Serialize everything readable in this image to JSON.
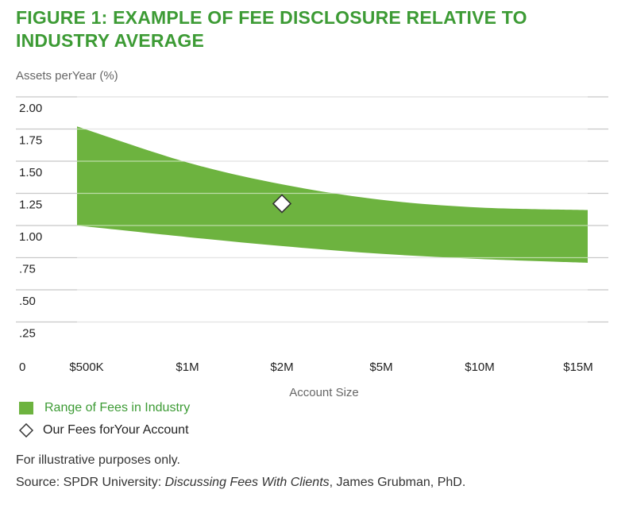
{
  "title": "FIGURE 1: EXAMPLE OF FEE DISCLOSURE RELATIVE TO INDUSTRY AVERAGE",
  "notes": {
    "line1": "For illustrative purposes only.",
    "source_prefix": "Source: SPDR University: ",
    "source_title": "Discussing  Fees With Clients",
    "source_suffix": ", James Grubman, PhD."
  },
  "chart_data": {
    "type": "area",
    "title": "FIGURE 1: EXAMPLE OF FEE DISCLOSURE RELATIVE TO INDUSTRY AVERAGE",
    "ylabel": "Assets perYear (%)",
    "xlabel": "Account Size",
    "categories": [
      "$500K",
      "$1M",
      "$2M",
      "$5M",
      "$10M",
      "$15M"
    ],
    "y_ticks": [
      {
        "value": 0,
        "label": "0"
      },
      {
        "value": 0.25,
        "label": ".25"
      },
      {
        "value": 0.5,
        "label": ".50"
      },
      {
        "value": 0.75,
        "label": ".75"
      },
      {
        "value": 1.0,
        "label": "1.00"
      },
      {
        "value": 1.25,
        "label": "1.25"
      },
      {
        "value": 1.5,
        "label": "1.50"
      },
      {
        "value": 1.75,
        "label": "1.75"
      },
      {
        "value": 2.0,
        "label": "2.00"
      }
    ],
    "ylim": [
      0,
      2.0
    ],
    "grid": true,
    "legend_position": "bottom-left",
    "series": [
      {
        "name": "Range of Fees in Industry",
        "kind": "range",
        "color": "#6db33f",
        "upper": [
          1.77,
          1.49,
          1.32,
          1.2,
          1.14,
          1.12
        ],
        "lower": [
          1.0,
          0.91,
          0.84,
          0.78,
          0.74,
          0.71
        ]
      },
      {
        "name": "Our Fees forYour Account",
        "kind": "marker",
        "x_category": "$2M",
        "value": 1.17
      }
    ]
  }
}
